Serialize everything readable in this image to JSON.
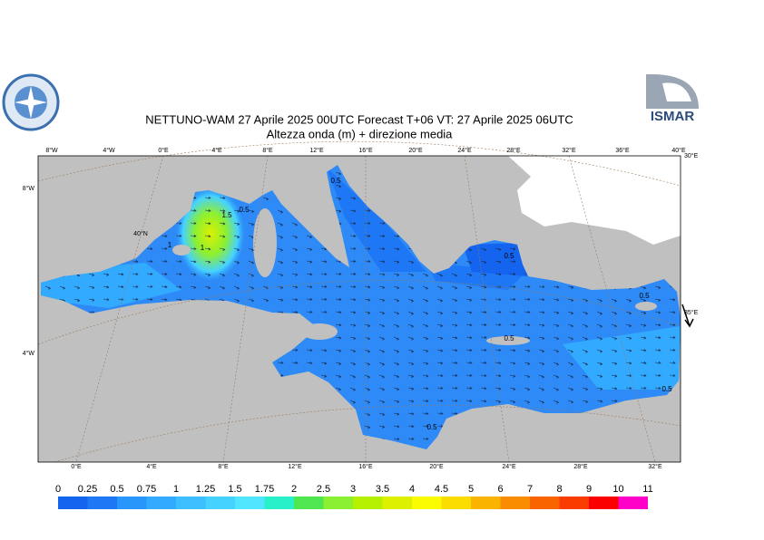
{
  "header": {
    "title": "NETTUNO-WAM  27   Aprile  2025 00UTC Forecast T+06 VT: 27   Aprile  2025 06UTC",
    "subtitle": "Altezza onda (m) + direzione media",
    "logo_text": "ISMAR"
  },
  "graticule": {
    "top_labels": [
      "8°W",
      "4°W",
      "0°E",
      "4°E",
      "8°E",
      "12°E",
      "16°E",
      "20°E",
      "24°E",
      "28°E",
      "32°E",
      "36°E",
      "40°E"
    ],
    "bottom_labels": [
      "0°E",
      "4°E",
      "8°E",
      "12°E",
      "16°E",
      "20°E",
      "24°E",
      "28°E",
      "32°E"
    ],
    "left_labels": [
      "8°W",
      "4°W"
    ],
    "right_labels": [
      "30°E",
      "35°E"
    ],
    "inner_labels": [
      "40°N"
    ]
  },
  "contour_labels": [
    "0.5",
    "0.5",
    "1.5",
    "1",
    "1",
    "0.5",
    "0.5",
    "0.5",
    "0.5",
    "0.5"
  ],
  "colorbar": {
    "levels": [
      0,
      0.25,
      0.5,
      0.75,
      1,
      1.25,
      1.5,
      1.75,
      2,
      2.5,
      3,
      3.5,
      4,
      4.5,
      5,
      6,
      7,
      8,
      9,
      10,
      11
    ],
    "colors": [
      "#1464f0",
      "#1e78f5",
      "#2896fa",
      "#32aaff",
      "#3cbeff",
      "#46d2ff",
      "#50e6ff",
      "#28f0c8",
      "#50e650",
      "#8cf032",
      "#b4f000",
      "#dcf000",
      "#fafa00",
      "#fadc00",
      "#fab400",
      "#fa8c00",
      "#fa6400",
      "#fa3c00",
      "#fa0000",
      "#ff00c8"
    ]
  }
}
